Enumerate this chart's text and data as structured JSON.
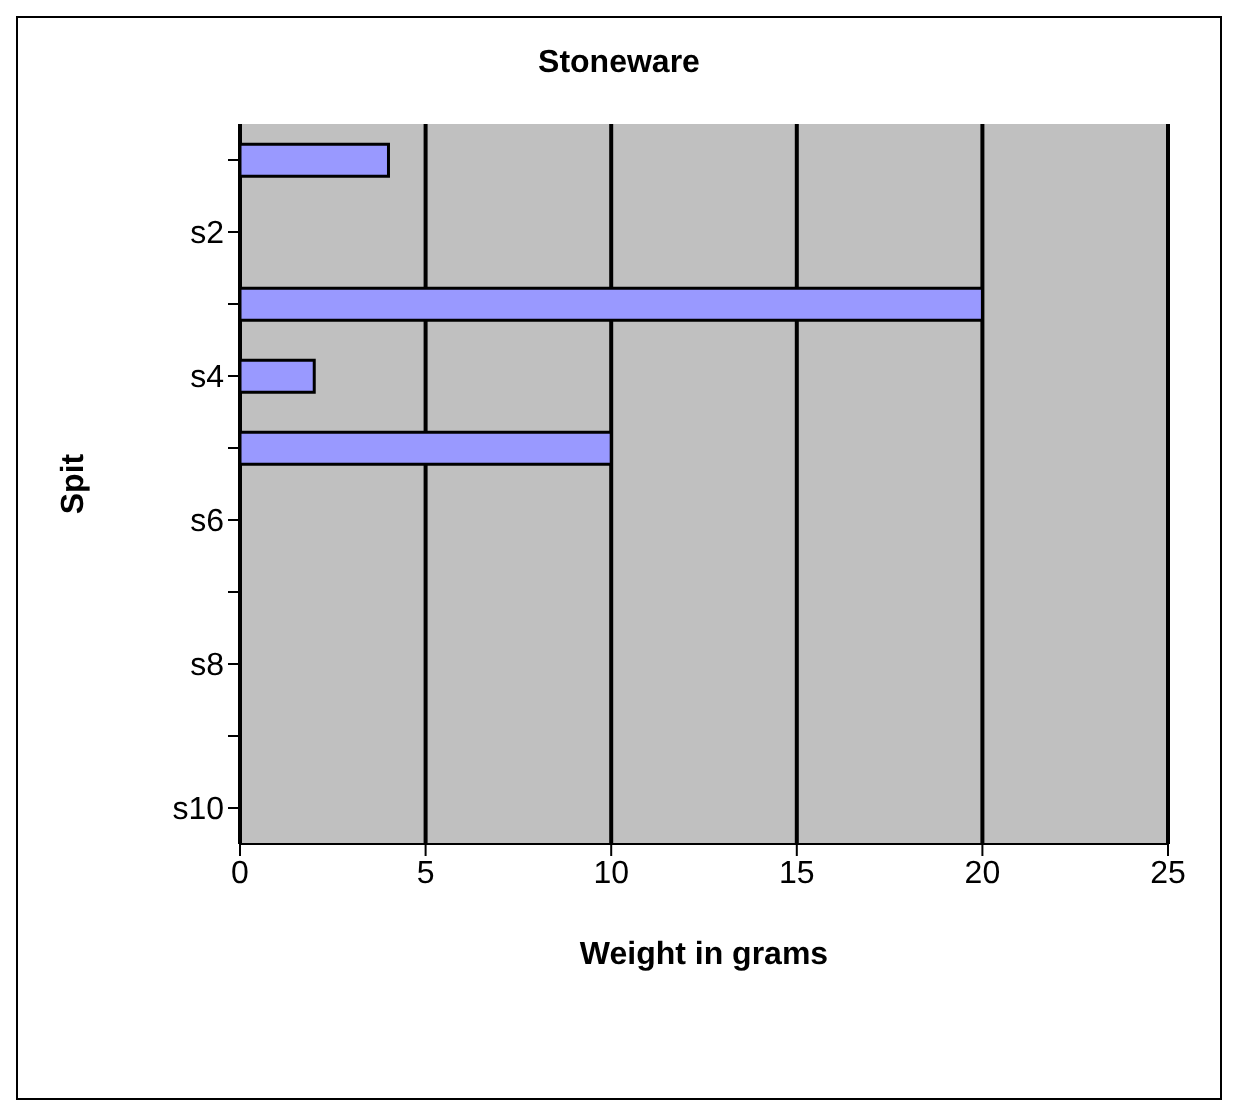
{
  "chart_data": {
    "type": "bar",
    "orientation": "horizontal",
    "title": "Stoneware",
    "xlabel": "Weight in grams",
    "ylabel": "Spit",
    "categories": [
      null,
      "s2",
      null,
      "s4",
      null,
      "s6",
      null,
      "s8",
      null,
      "s10"
    ],
    "values": [
      4,
      null,
      20,
      2,
      10,
      null,
      null,
      null,
      null,
      null
    ],
    "color": "#9999ff",
    "xlim": [
      0,
      25
    ],
    "xticks": [
      0,
      5,
      10,
      15,
      20,
      25
    ],
    "grid": "x",
    "legend": false
  }
}
